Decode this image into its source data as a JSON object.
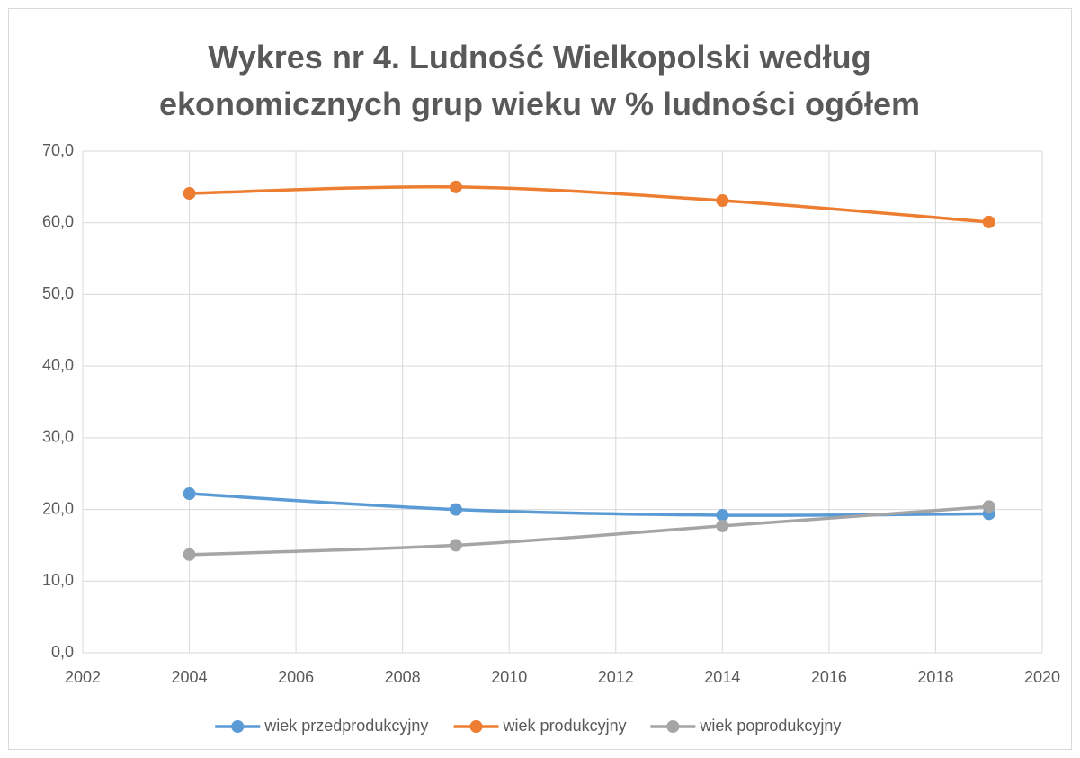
{
  "chart_data": {
    "type": "line",
    "title": "Wykres nr 4. Ludność Wielkopolski według ekonomicznych grup wieku w % ludności ogółem",
    "x": [
      2004,
      2009,
      2014,
      2019
    ],
    "series": [
      {
        "name": "wiek przedprodukcyjny",
        "color": "#5b9bd5",
        "values": [
          22.2,
          20.0,
          19.2,
          19.4
        ]
      },
      {
        "name": "wiek produkcyjny",
        "color": "#ed7d31",
        "values": [
          64.1,
          65.0,
          63.1,
          60.1
        ]
      },
      {
        "name": "wiek poprodukcyjny",
        "color": "#a5a5a5",
        "values": [
          13.7,
          15.0,
          17.7,
          20.4
        ]
      }
    ],
    "xlim": [
      2002,
      2020
    ],
    "xticks": [
      2002,
      2004,
      2006,
      2008,
      2010,
      2012,
      2014,
      2016,
      2018,
      2020
    ],
    "ylim": [
      0,
      70
    ],
    "yticks": [
      {
        "value": 0,
        "label": "0,0"
      },
      {
        "value": 10,
        "label": "10,0"
      },
      {
        "value": 20,
        "label": "20,0"
      },
      {
        "value": 30,
        "label": "30,0"
      },
      {
        "value": 40,
        "label": "40,0"
      },
      {
        "value": 50,
        "label": "50,0"
      },
      {
        "value": 60,
        "label": "60,0"
      },
      {
        "value": 70,
        "label": "70,0"
      }
    ],
    "grid": true,
    "smooth": true,
    "legend": "bottom"
  }
}
